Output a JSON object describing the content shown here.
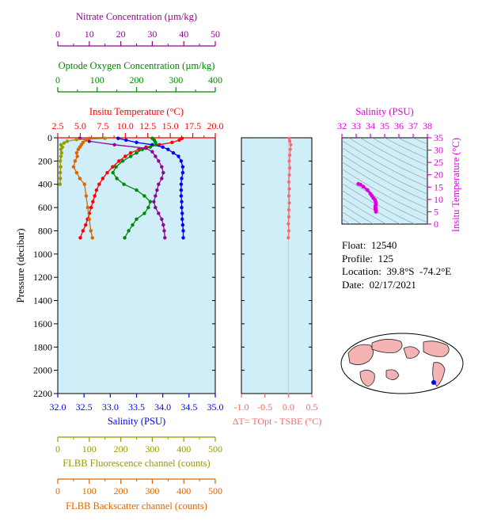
{
  "float_info": {
    "float": "Float:  12540",
    "profile": "Profile:  125",
    "location": "Location:  39.8°S  -74.2°E",
    "date": "Date:  02/17/2021"
  },
  "colors": {
    "temperature": "#ff0000",
    "salinity": "#0000ff",
    "oxygen": "#008800",
    "nitrate": "#990099",
    "fluorescence": "#999900",
    "backscatter": "#dd6600",
    "delta_t": "#ff6666",
    "ts_accent": "#dd00dd",
    "plot_bg": "#cfeef8"
  },
  "chart_data": [
    {
      "type": "line",
      "name": "main-profile",
      "ylabel": "Pressure (decibar)",
      "ylim": [
        2200,
        0
      ],
      "yticks": [
        "0",
        "200",
        "400",
        "600",
        "800",
        "1000",
        "1200",
        "1400",
        "1600",
        "1800",
        "2000",
        "2200"
      ],
      "axes": {
        "nitrate": {
          "label": "Nitrate Concentration (µm/kg)",
          "lim": [
            0,
            50
          ],
          "ticks": [
            "0",
            "10",
            "20",
            "30",
            "40",
            "50"
          ]
        },
        "oxygen": {
          "label": "Optode Oxygen Concentration (µm/kg)",
          "lim": [
            0,
            400
          ],
          "ticks": [
            "0",
            "100",
            "200",
            "300",
            "400"
          ]
        },
        "temperature": {
          "label": "Insitu Temperature (°C)",
          "lim": [
            2.5,
            20.0
          ],
          "ticks": [
            "2.5",
            "5.0",
            "7.5",
            "10.0",
            "12.5",
            "15.0",
            "17.5",
            "20.0"
          ]
        },
        "salinity": {
          "label": "Salinity (PSU)",
          "lim": [
            32.0,
            35.0
          ],
          "ticks": [
            "32.0",
            "32.5",
            "33.0",
            "33.5",
            "34.0",
            "34.5",
            "35.0"
          ]
        },
        "fluorescence": {
          "label": "FLBB Fluorescence channel (counts)",
          "lim": [
            0,
            500
          ],
          "ticks": [
            "0",
            "100",
            "200",
            "300",
            "400",
            "500"
          ]
        },
        "backscatter": {
          "label": "FLBB Backscatter channel (counts)",
          "lim": [
            0,
            500
          ],
          "ticks": [
            "0",
            "100",
            "200",
            "300",
            "400",
            "500"
          ]
        }
      },
      "series": [
        {
          "key": "temperature",
          "pressure": [
            5,
            20,
            40,
            60,
            80,
            100,
            130,
            160,
            200,
            250,
            300,
            350,
            400,
            450,
            500,
            550,
            600,
            650,
            700,
            750,
            800,
            860
          ],
          "values": [
            16.3,
            16.0,
            15.2,
            13.8,
            12.3,
            11.5,
            10.6,
            10.0,
            9.3,
            8.6,
            8.0,
            7.5,
            7.1,
            6.8,
            6.6,
            6.4,
            6.2,
            6.0,
            5.8,
            5.6,
            5.3,
            5.0
          ]
        },
        {
          "key": "salinity",
          "pressure": [
            5,
            20,
            40,
            60,
            80,
            100,
            130,
            160,
            200,
            250,
            300,
            350,
            400,
            450,
            500,
            550,
            600,
            650,
            700,
            750,
            800,
            860
          ],
          "values": [
            33.15,
            33.3,
            33.5,
            33.8,
            34.0,
            34.1,
            34.2,
            34.3,
            34.35,
            34.38,
            34.38,
            34.36,
            34.35,
            34.35,
            34.35,
            34.36,
            34.36,
            34.37,
            34.37,
            34.38,
            34.39,
            34.39
          ]
        },
        {
          "key": "oxygen",
          "pressure": [
            5,
            20,
            40,
            60,
            80,
            100,
            130,
            160,
            200,
            250,
            300,
            350,
            400,
            450,
            500,
            550,
            600,
            650,
            700,
            750,
            800,
            860
          ],
          "values": [
            240,
            245,
            248,
            250,
            235,
            215,
            200,
            185,
            165,
            148,
            140,
            150,
            168,
            200,
            220,
            235,
            230,
            220,
            200,
            190,
            180,
            170
          ]
        },
        {
          "key": "nitrate",
          "pressure": [
            5,
            30,
            60,
            90,
            120,
            160,
            200,
            250,
            300,
            350,
            400,
            450,
            500,
            550,
            600,
            650,
            700,
            750,
            800,
            860
          ],
          "values": [
            7,
            10,
            18,
            28,
            30,
            31,
            32,
            33,
            33.5,
            33,
            32,
            31.5,
            31,
            30.5,
            31,
            32,
            33,
            33.5,
            33.8,
            34
          ]
        },
        {
          "key": "fluorescence",
          "pressure": [
            5,
            15,
            30,
            45,
            60,
            80,
            100,
            130,
            160,
            200,
            250,
            300,
            350,
            400
          ],
          "values": [
            150,
            60,
            30,
            20,
            10,
            15,
            10,
            12,
            10,
            8,
            9,
            8,
            8,
            7
          ]
        },
        {
          "key": "backscatter",
          "pressure": [
            5,
            20,
            40,
            60,
            80,
            100,
            130,
            160,
            200,
            250,
            300,
            350,
            400,
            500,
            600,
            700,
            800,
            860
          ],
          "values": [
            100,
            90,
            80,
            75,
            70,
            65,
            60,
            62,
            55,
            50,
            60,
            70,
            85,
            90,
            95,
            100,
            105,
            110
          ]
        }
      ]
    },
    {
      "type": "line",
      "name": "delta-t",
      "xlabel": "ΔT= TOpt - TSBE (°C)",
      "xlim": [
        -1.0,
        0.5
      ],
      "xticks": [
        "-1.0",
        "-0.5",
        "0.0",
        "0.5"
      ],
      "ylim": [
        2200,
        0
      ],
      "series": [
        {
          "name": "ΔT",
          "pressure": [
            5,
            30,
            60,
            100,
            150,
            200,
            260,
            320,
            380,
            440,
            500,
            560,
            620,
            680,
            740,
            800,
            860
          ],
          "values": [
            0.02,
            0.03,
            0.05,
            0.04,
            0.03,
            0.02,
            0.03,
            0.02,
            0.01,
            0.02,
            0.01,
            0.02,
            0.01,
            0.01,
            0.0,
            0.01,
            0.0
          ]
        }
      ]
    },
    {
      "type": "scatter",
      "name": "ts-diagram",
      "xlabel": "Salinity (PSU)",
      "ylabel": "Insitu Temperature (°C)",
      "xlim": [
        32,
        38
      ],
      "ylim": [
        0,
        35
      ],
      "xticks": [
        "32",
        "33",
        "34",
        "35",
        "36",
        "37",
        "38"
      ],
      "yticks": [
        "0",
        "5",
        "10",
        "15",
        "20",
        "25",
        "30",
        "35"
      ],
      "series": [
        {
          "name": "profile",
          "x": [
            33.15,
            33.3,
            33.5,
            33.8,
            34.0,
            34.1,
            34.2,
            34.3,
            34.35,
            34.38,
            34.38,
            34.36,
            34.35,
            34.35,
            34.35,
            34.36,
            34.36,
            34.37,
            34.37,
            34.38,
            34.39,
            34.39
          ],
          "y": [
            16.3,
            16.0,
            15.2,
            13.8,
            12.3,
            11.5,
            10.6,
            10.0,
            9.3,
            8.6,
            8.0,
            7.5,
            7.1,
            6.8,
            6.6,
            6.4,
            6.2,
            6.0,
            5.8,
            5.6,
            5.3,
            5.0
          ]
        }
      ]
    }
  ]
}
